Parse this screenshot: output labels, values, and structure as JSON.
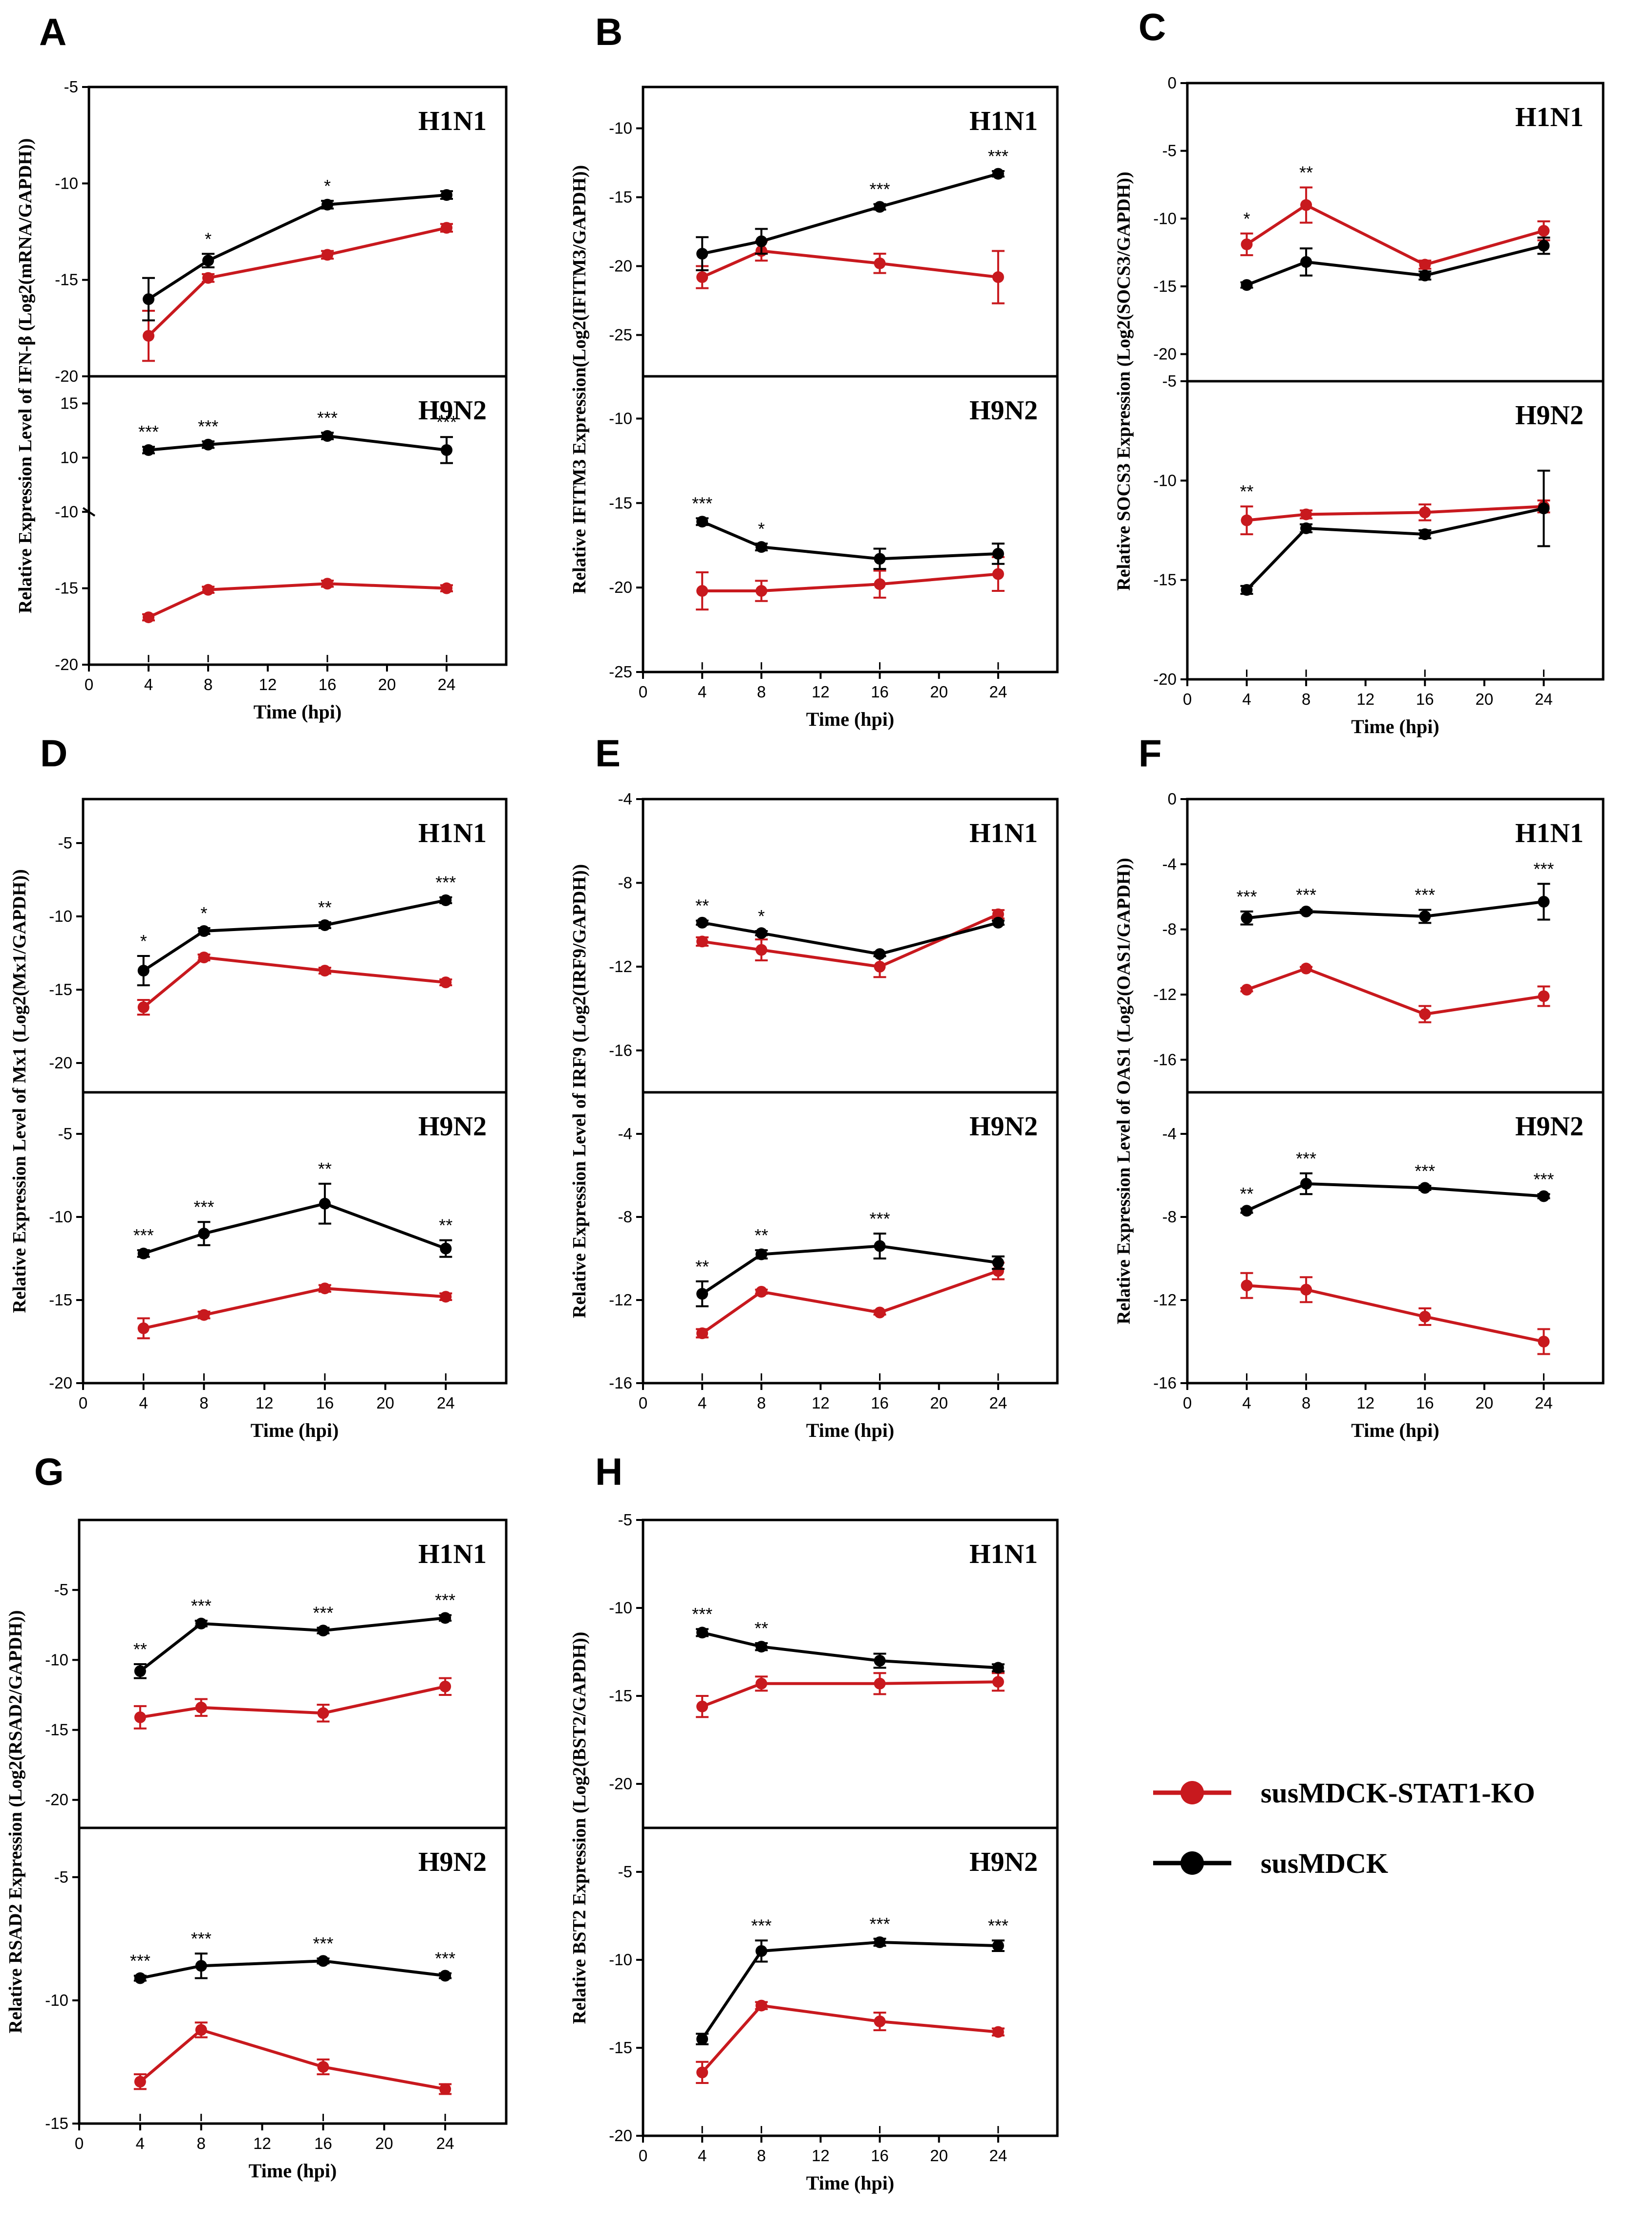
{
  "colors": {
    "ko": "#c8191e",
    "wt": "#000000"
  },
  "legend": {
    "ko_label": "susMDCK-STAT1-KO",
    "wt_label": "susMDCK"
  },
  "chart_data": [
    {
      "panel": "A",
      "type": "line",
      "xlabel": "Time (hpi)",
      "xlim": [
        0,
        28
      ],
      "xticks": [
        0,
        4,
        8,
        12,
        16,
        20,
        24
      ],
      "ylabel": "Relative Expression Level of IFN-β (Log2(mRNA/GAPDH))",
      "x": [
        4,
        8,
        16,
        24
      ],
      "subplots": [
        {
          "virus": "H1N1",
          "ylim": [
            -20,
            -5
          ],
          "yticks": [
            -5,
            -10,
            -15,
            -20
          ],
          "series": [
            {
              "name": "susMDCK",
              "values": [
                -16.0,
                -14.0,
                -11.1,
                -10.6
              ],
              "err": [
                1.1,
                0.35,
                0.2,
                0.2
              ],
              "sig": [
                "",
                "*",
                "*",
                ""
              ]
            },
            {
              "name": "susMDCK-STAT1-KO",
              "values": [
                -17.9,
                -14.9,
                -13.7,
                -12.3
              ],
              "err": [
                1.3,
                0.2,
                0.2,
                0.2
              ]
            }
          ]
        },
        {
          "virus": "H9N2",
          "broken": true,
          "upper": {
            "ylim": [
              5,
              17.5
            ],
            "yticks": [
              10,
              15
            ]
          },
          "lower": {
            "ylim": [
              -20,
              -10
            ],
            "yticks": [
              -10,
              -15,
              -20
            ]
          },
          "series": [
            {
              "name": "susMDCK",
              "values": [
                10.7,
                11.2,
                12.0,
                10.7
              ],
              "err": [
                0.3,
                0.3,
                0.3,
                1.2
              ],
              "sig": [
                "***",
                "***",
                "***",
                "***"
              ]
            },
            {
              "name": "susMDCK-STAT1-KO",
              "values": [
                -16.9,
                -15.1,
                -14.7,
                -15.0
              ],
              "err": [
                0.2,
                0.2,
                0.2,
                0.2
              ]
            }
          ]
        }
      ]
    },
    {
      "panel": "B",
      "type": "line",
      "xlabel": "Time (hpi)",
      "xlim": [
        0,
        28
      ],
      "xticks": [
        0,
        4,
        8,
        12,
        16,
        20,
        24
      ],
      "ylabel": "Relative IFITM3 Expression(Log2(IFITM3/GAPDH))",
      "x": [
        4,
        8,
        16,
        24
      ],
      "subplots": [
        {
          "virus": "H1N1",
          "ylim": [
            -28,
            -7
          ],
          "yticks": [
            -10,
            -15,
            -20,
            -25
          ],
          "series": [
            {
              "name": "susMDCK",
              "values": [
                -19.1,
                -18.2,
                -15.7,
                -13.3
              ],
              "err": [
                1.2,
                0.9,
                0.2,
                0.2
              ],
              "sig": [
                "",
                "",
                "***",
                "***"
              ]
            },
            {
              "name": "susMDCK-STAT1-KO",
              "values": [
                -20.8,
                -18.9,
                -19.8,
                -20.8
              ],
              "err": [
                0.8,
                0.7,
                0.7,
                1.9
              ]
            }
          ]
        },
        {
          "virus": "H9N2",
          "ylim": [
            -25,
            -7.5
          ],
          "yticks": [
            -10,
            -15,
            -20,
            -25
          ],
          "series": [
            {
              "name": "susMDCK",
              "values": [
                -16.1,
                -17.6,
                -18.3,
                -18.0
              ],
              "err": [
                0.2,
                0.2,
                0.6,
                0.6
              ],
              "sig": [
                "***",
                "*",
                "",
                ""
              ]
            },
            {
              "name": "susMDCK-STAT1-KO",
              "values": [
                -20.2,
                -20.2,
                -19.8,
                -19.2
              ],
              "err": [
                1.1,
                0.6,
                0.8,
                1.0
              ]
            }
          ]
        }
      ]
    },
    {
      "panel": "C",
      "type": "line",
      "xlabel": "Time (hpi)",
      "xlim": [
        0,
        28
      ],
      "xticks": [
        0,
        4,
        8,
        12,
        16,
        20,
        24
      ],
      "ylabel": "Relative SOCS3 Expression (Log2(SOCS3/GAPDH))",
      "x": [
        4,
        8,
        16,
        24
      ],
      "subplots": [
        {
          "virus": "H1N1",
          "ylim": [
            -22,
            0
          ],
          "yticks": [
            0,
            -5,
            -10,
            -15,
            -20
          ],
          "series": [
            {
              "name": "susMDCK-STAT1-KO",
              "values": [
                -11.9,
                -9.0,
                -13.4,
                -10.9
              ],
              "err": [
                0.8,
                1.3,
                0.3,
                0.7
              ],
              "sig": [
                "*",
                "**",
                "",
                ""
              ]
            },
            {
              "name": "susMDCK",
              "values": [
                -14.9,
                -13.2,
                -14.2,
                -12.0
              ],
              "err": [
                0.2,
                1.0,
                0.3,
                0.6
              ]
            }
          ]
        },
        {
          "virus": "H9N2",
          "ylim": [
            -20,
            -5
          ],
          "yticks": [
            -5,
            -10,
            -15,
            -20
          ],
          "series": [
            {
              "name": "susMDCK",
              "values": [
                -15.5,
                -12.4,
                -12.7,
                -11.4
              ],
              "err": [
                0.2,
                0.2,
                0.2,
                1.9
              ],
              "sig": [
                "**",
                "",
                "",
                ""
              ]
            },
            {
              "name": "susMDCK-STAT1-KO",
              "values": [
                -12.0,
                -11.7,
                -11.6,
                -11.3
              ],
              "err": [
                0.7,
                0.2,
                0.4,
                0.3
              ]
            }
          ]
        }
      ]
    },
    {
      "panel": "D",
      "type": "line",
      "xlabel": "Time (hpi)",
      "xlim": [
        0,
        28
      ],
      "xticks": [
        0,
        4,
        8,
        12,
        16,
        20,
        24
      ],
      "ylabel": "Relative Expression Level of Mx1 (Log2(Mx1/GAPDH))",
      "x": [
        4,
        8,
        16,
        24
      ],
      "subplots": [
        {
          "virus": "H1N1",
          "ylim": [
            -22,
            -2
          ],
          "yticks": [
            -5,
            -10,
            -15,
            -20
          ],
          "series": [
            {
              "name": "susMDCK",
              "values": [
                -13.7,
                -11.0,
                -10.6,
                -8.9
              ],
              "err": [
                1.0,
                0.2,
                0.2,
                0.2
              ],
              "sig": [
                "*",
                "*",
                "**",
                "***"
              ]
            },
            {
              "name": "susMDCK-STAT1-KO",
              "values": [
                -16.2,
                -12.8,
                -13.7,
                -14.5
              ],
              "err": [
                0.5,
                0.2,
                0.2,
                0.2
              ]
            }
          ]
        },
        {
          "virus": "H9N2",
          "ylim": [
            -20,
            -2.5
          ],
          "yticks": [
            -5,
            -10,
            -15,
            -20
          ],
          "series": [
            {
              "name": "susMDCK",
              "values": [
                -12.2,
                -11.0,
                -9.2,
                -11.9
              ],
              "err": [
                0.2,
                0.7,
                1.2,
                0.5
              ],
              "sig": [
                "***",
                "***",
                "**",
                "**"
              ]
            },
            {
              "name": "susMDCK-STAT1-KO",
              "values": [
                -16.7,
                -15.9,
                -14.3,
                -14.8
              ],
              "err": [
                0.6,
                0.2,
                0.2,
                0.2
              ]
            }
          ]
        }
      ]
    },
    {
      "panel": "E",
      "type": "line",
      "xlabel": "Time (hpi)",
      "xlim": [
        0,
        28
      ],
      "xticks": [
        0,
        4,
        8,
        12,
        16,
        20,
        24
      ],
      "ylabel": "Relative Expression Level of IRF9 (Log2(IRF9/GAPDH))",
      "x": [
        4,
        8,
        16,
        24
      ],
      "subplots": [
        {
          "virus": "H1N1",
          "ylim": [
            -18,
            -4
          ],
          "yticks": [
            -4,
            -8,
            -12,
            -16
          ],
          "series": [
            {
              "name": "susMDCK",
              "values": [
                -9.9,
                -10.4,
                -11.4,
                -9.9
              ],
              "err": [
                0.1,
                0.1,
                0.1,
                0.1
              ],
              "sig": [
                "**",
                "*",
                "",
                ""
              ]
            },
            {
              "name": "susMDCK-STAT1-KO",
              "values": [
                -10.8,
                -11.2,
                -12.0,
                -9.5
              ],
              "err": [
                0.2,
                0.5,
                0.5,
                0.2
              ]
            }
          ]
        },
        {
          "virus": "H9N2",
          "ylim": [
            -16,
            -2
          ],
          "yticks": [
            -4,
            -8,
            -12,
            -16
          ],
          "series": [
            {
              "name": "susMDCK",
              "values": [
                -11.7,
                -9.8,
                -9.4,
                -10.2
              ],
              "err": [
                0.6,
                0.2,
                0.6,
                0.3
              ],
              "sig": [
                "**",
                "**",
                "***",
                ""
              ]
            },
            {
              "name": "susMDCK-STAT1-KO",
              "values": [
                -13.6,
                -11.6,
                -12.6,
                -10.6
              ],
              "err": [
                0.2,
                0.1,
                0.1,
                0.4
              ]
            }
          ]
        }
      ]
    },
    {
      "panel": "F",
      "type": "line",
      "xlabel": "Time (hpi)",
      "xlim": [
        0,
        28
      ],
      "xticks": [
        0,
        4,
        8,
        12,
        16,
        20,
        24
      ],
      "ylabel": "Relative Expression Level of OAS1 (Log2(OAS1/GAPDH))",
      "x": [
        4,
        8,
        16,
        24
      ],
      "subplots": [
        {
          "virus": "H1N1",
          "ylim": [
            -18,
            0
          ],
          "yticks": [
            0,
            -4,
            -8,
            -12,
            -16
          ],
          "series": [
            {
              "name": "susMDCK",
              "values": [
                -7.3,
                -6.9,
                -7.2,
                -6.3
              ],
              "err": [
                0.4,
                0.1,
                0.4,
                1.1
              ],
              "sig": [
                "***",
                "***",
                "***",
                "***"
              ]
            },
            {
              "name": "susMDCK-STAT1-KO",
              "values": [
                -11.7,
                -10.4,
                -13.2,
                -12.1
              ],
              "err": [
                0.1,
                0.1,
                0.5,
                0.6
              ]
            }
          ]
        },
        {
          "virus": "H9N2",
          "ylim": [
            -16,
            -2
          ],
          "yticks": [
            -4,
            -8,
            -12,
            -16
          ],
          "series": [
            {
              "name": "susMDCK",
              "values": [
                -7.7,
                -6.4,
                -6.6,
                -7.0
              ],
              "err": [
                0.1,
                0.5,
                0.1,
                0.1
              ],
              "sig": [
                "**",
                "***",
                "***",
                "***"
              ]
            },
            {
              "name": "susMDCK-STAT1-KO",
              "values": [
                -11.3,
                -11.5,
                -12.8,
                -14.0
              ],
              "err": [
                0.6,
                0.6,
                0.4,
                0.6
              ]
            }
          ]
        }
      ]
    },
    {
      "panel": "G",
      "type": "line",
      "xlabel": "Time (hpi)",
      "xlim": [
        0,
        28
      ],
      "xticks": [
        0,
        4,
        8,
        12,
        16,
        20,
        24
      ],
      "ylabel": "Relative RSAD2 Expression (Log2(RSAD2/GAPDH))",
      "x": [
        4,
        8,
        16,
        24
      ],
      "subplots": [
        {
          "virus": "H1N1",
          "ylim": [
            -22,
            0
          ],
          "yticks": [
            -5,
            -10,
            -15,
            -20
          ],
          "series": [
            {
              "name": "susMDCK",
              "values": [
                -10.8,
                -7.4,
                -7.9,
                -7.0
              ],
              "err": [
                0.5,
                0.2,
                0.2,
                0.2
              ],
              "sig": [
                "**",
                "***",
                "***",
                "***"
              ]
            },
            {
              "name": "susMDCK-STAT1-KO",
              "values": [
                -14.1,
                -13.4,
                -13.8,
                -11.9
              ],
              "err": [
                0.8,
                0.6,
                0.6,
                0.6
              ]
            }
          ]
        },
        {
          "virus": "H9N2",
          "ylim": [
            -15,
            -3
          ],
          "yticks": [
            -5,
            -10,
            -15
          ],
          "series": [
            {
              "name": "susMDCK",
              "values": [
                -9.1,
                -8.6,
                -8.4,
                -9.0
              ],
              "err": [
                0.1,
                0.5,
                0.1,
                0.1
              ],
              "sig": [
                "***",
                "***",
                "***",
                "***"
              ]
            },
            {
              "name": "susMDCK-STAT1-KO",
              "values": [
                -13.3,
                -11.2,
                -12.7,
                -13.6
              ],
              "err": [
                0.3,
                0.3,
                0.3,
                0.2
              ]
            }
          ]
        }
      ]
    },
    {
      "panel": "H",
      "type": "line",
      "xlabel": "Time (hpi)",
      "xlim": [
        0,
        28
      ],
      "xticks": [
        0,
        4,
        8,
        12,
        16,
        20,
        24
      ],
      "ylabel": "Relative BST2 Expression (Log2(BST2/GAPDH))",
      "x": [
        4,
        8,
        16,
        24
      ],
      "subplots": [
        {
          "virus": "H1N1",
          "ylim": [
            -22.5,
            -5
          ],
          "yticks": [
            -5,
            -10,
            -15,
            -20
          ],
          "series": [
            {
              "name": "susMDCK",
              "values": [
                -11.4,
                -12.2,
                -13.0,
                -13.4
              ],
              "err": [
                0.2,
                0.2,
                0.4,
                0.2
              ],
              "sig": [
                "***",
                "**",
                "",
                ""
              ]
            },
            {
              "name": "susMDCK-STAT1-KO",
              "values": [
                -15.6,
                -14.3,
                -14.3,
                -14.2
              ],
              "err": [
                0.6,
                0.4,
                0.6,
                0.5
              ]
            }
          ]
        },
        {
          "virus": "H9N2",
          "ylim": [
            -20,
            -2.5
          ],
          "yticks": [
            -5,
            -10,
            -15,
            -20
          ],
          "series": [
            {
              "name": "susMDCK",
              "values": [
                -14.5,
                -9.5,
                -9.0,
                -9.2
              ],
              "err": [
                0.3,
                0.6,
                0.2,
                0.3
              ],
              "sig": [
                "",
                "***",
                "***",
                "***"
              ]
            },
            {
              "name": "susMDCK-STAT1-KO",
              "values": [
                -16.4,
                -12.6,
                -13.5,
                -14.1
              ],
              "err": [
                0.6,
                0.2,
                0.5,
                0.2
              ]
            }
          ]
        }
      ]
    }
  ]
}
